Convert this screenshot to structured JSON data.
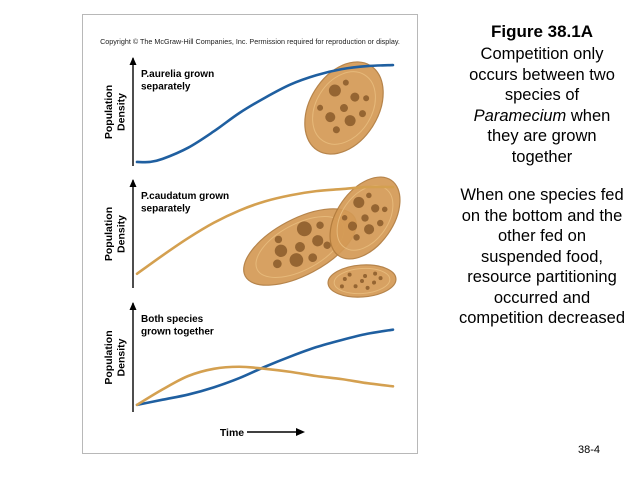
{
  "copyright": "Copyright © The McGraw-Hill Companies, Inc. Permission required for reproduction or display.",
  "caption": {
    "figure_label": "Figure 38.1A",
    "text_before": "Competition only occurs between two species of ",
    "species": "Paramecium",
    "text_after": " when they are grown together",
    "paragraph_2": "When one species fed on the bottom and the other fed on suspended food, resource partitioning occurred and competition decreased"
  },
  "slide_number": "38-4",
  "colors": {
    "aurelia": "#1f5fa0",
    "caudatum": "#d4a050",
    "cell_fill": "#d49a55",
    "cell_spots": "#8a5a2a"
  },
  "chart_data": [
    {
      "type": "line",
      "panel_label": "P.aurelia grown separately",
      "ylabel": "Population Density",
      "xlabel": "",
      "x": [
        0,
        0.05,
        0.1,
        0.2,
        0.3,
        0.4,
        0.5,
        0.6,
        0.7,
        0.8,
        0.9,
        1.0
      ],
      "series": [
        {
          "name": "P. aurelia",
          "color": "#1f5fa0",
          "y": [
            0.02,
            0.02,
            0.05,
            0.16,
            0.32,
            0.5,
            0.65,
            0.78,
            0.87,
            0.93,
            0.96,
            0.97
          ]
        }
      ]
    },
    {
      "type": "line",
      "panel_label": "P.caudatum grown separately",
      "ylabel": "Population Density",
      "xlabel": "",
      "x": [
        0,
        0.1,
        0.2,
        0.3,
        0.4,
        0.5,
        0.6,
        0.7,
        0.8,
        0.9,
        1.0
      ],
      "series": [
        {
          "name": "P. caudatum",
          "color": "#d4a050",
          "y": [
            0.12,
            0.3,
            0.47,
            0.62,
            0.74,
            0.83,
            0.89,
            0.93,
            0.95,
            0.97,
            0.97
          ]
        }
      ]
    },
    {
      "type": "line",
      "panel_label": "Both species grown together",
      "ylabel": "Population Density",
      "xlabel": "Time",
      "x": [
        0,
        0.1,
        0.2,
        0.3,
        0.4,
        0.5,
        0.6,
        0.7,
        0.8,
        0.9,
        1.0
      ],
      "series": [
        {
          "name": "P. aurelia",
          "color": "#1f5fa0",
          "y": [
            0.05,
            0.1,
            0.15,
            0.22,
            0.31,
            0.42,
            0.52,
            0.61,
            0.68,
            0.74,
            0.78
          ]
        },
        {
          "name": "P. caudatum",
          "color": "#d4a050",
          "y": [
            0.05,
            0.2,
            0.33,
            0.4,
            0.42,
            0.4,
            0.37,
            0.33,
            0.3,
            0.26,
            0.23
          ]
        }
      ]
    }
  ]
}
